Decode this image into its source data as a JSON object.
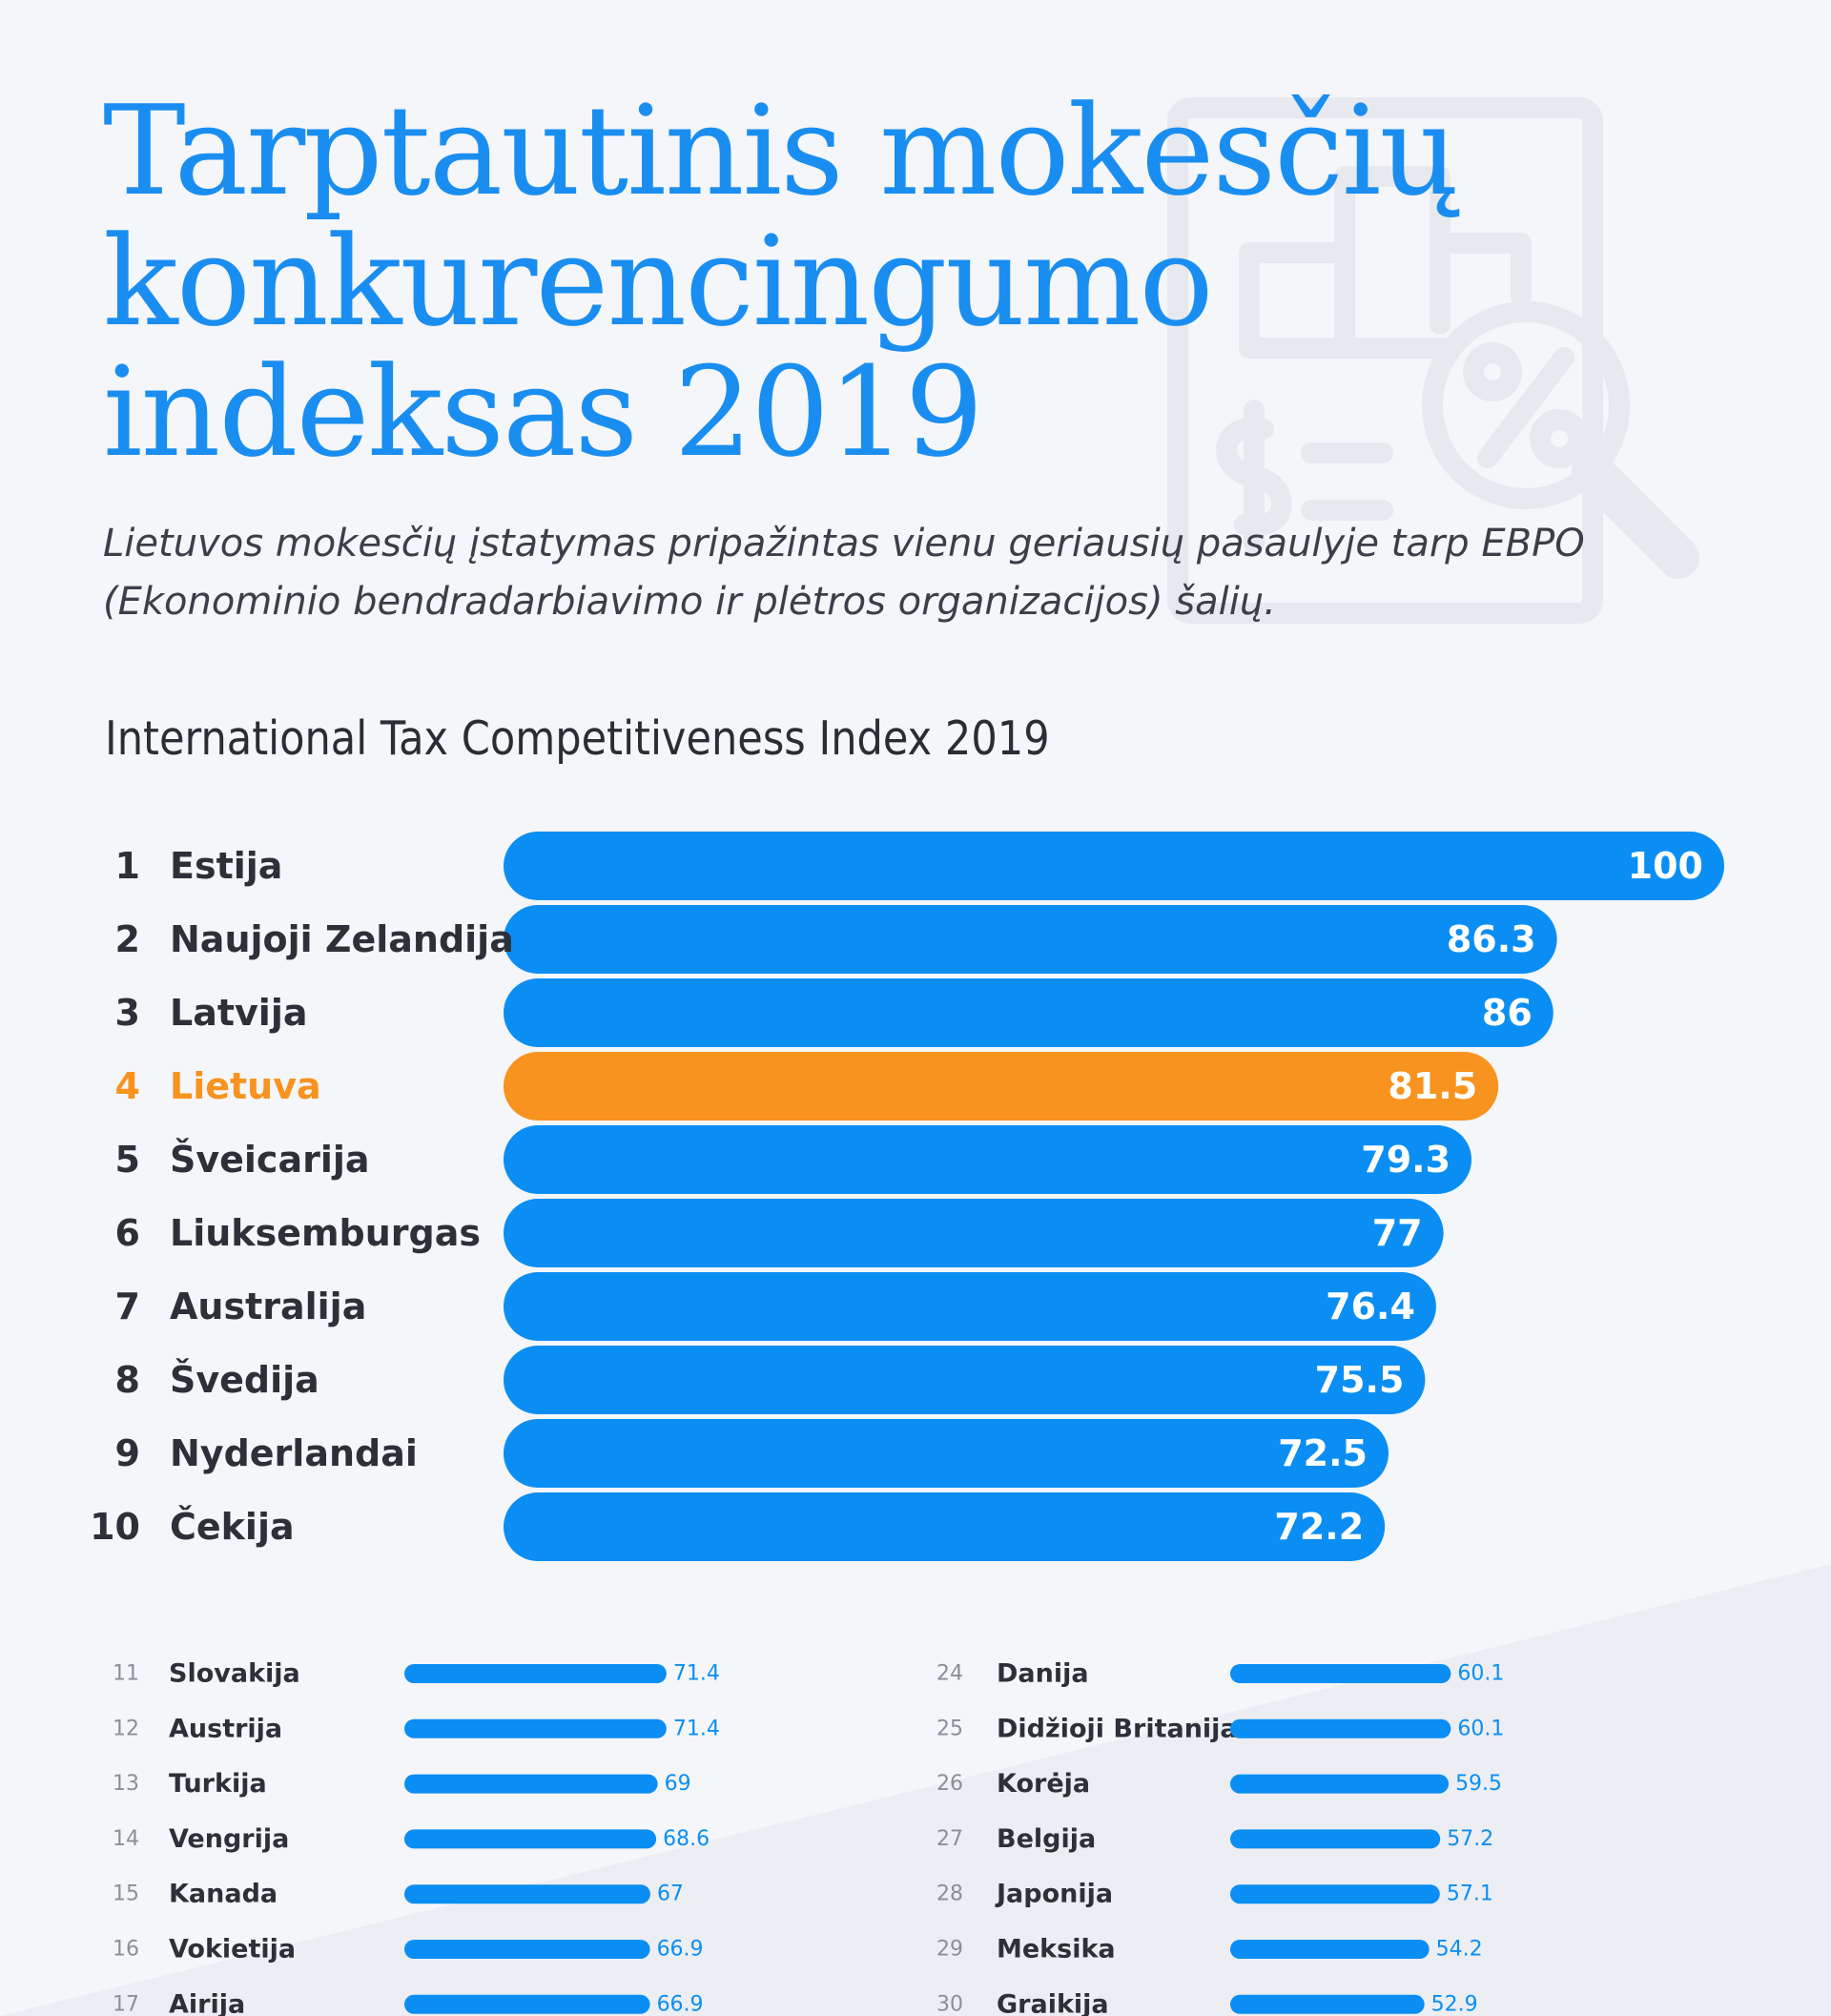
{
  "header": {
    "title_lines": [
      "Tarptautinis mokesčių",
      "konkurencingumo",
      "indeksas 2019"
    ],
    "subtitle_lines": [
      "Lietuvos mokesčių įstatymas pripažintas vienu geriausių pasaulyje tarp EBPO",
      "(Ekonominio bendradarbiavimo ir plėtros organizacijos) šalių."
    ]
  },
  "colors": {
    "title": "#1a8ef0",
    "bar": "#0b8ef3",
    "highlight": "#f7931e",
    "text": "#2d3038",
    "rank_small": "#8a8f99",
    "deco": "#e7e9ee"
  },
  "icons": [
    "report-chart-percent-icon"
  ],
  "chart_data": {
    "type": "bar",
    "orientation": "horizontal",
    "title": "International Tax Competitiveness Index 2019",
    "xlim": [
      0,
      100
    ],
    "highlight": "Lietuva",
    "top": [
      {
        "rank": "1",
        "country": "Estija",
        "value": 100,
        "label": "100"
      },
      {
        "rank": "2",
        "country": "Naujoji Zelandija",
        "value": 86.3,
        "label": "86.3"
      },
      {
        "rank": "3",
        "country": "Latvija",
        "value": 86,
        "label": "86"
      },
      {
        "rank": "4",
        "country": "Lietuva",
        "value": 81.5,
        "label": "81.5"
      },
      {
        "rank": "5",
        "country": "Šveicarija",
        "value": 79.3,
        "label": "79.3"
      },
      {
        "rank": "6",
        "country": "Liuksemburgas",
        "value": 77,
        "label": "77"
      },
      {
        "rank": "7",
        "country": "Australija",
        "value": 76.4,
        "label": "76.4"
      },
      {
        "rank": "8",
        "country": "Švedija",
        "value": 75.5,
        "label": "75.5"
      },
      {
        "rank": "9",
        "country": "Nyderlandai",
        "value": 72.5,
        "label": "72.5"
      },
      {
        "rank": "10",
        "country": "Čekija",
        "value": 72.2,
        "label": "72.2"
      }
    ],
    "rest_left": [
      {
        "rank": "11",
        "country": "Slovakija",
        "value": 71.4,
        "label": "71.4"
      },
      {
        "rank": "12",
        "country": "Austrija",
        "value": 71.4,
        "label": "71.4"
      },
      {
        "rank": "13",
        "country": "Turkija",
        "value": 69,
        "label": "69"
      },
      {
        "rank": "14",
        "country": "Vengrija",
        "value": 68.6,
        "label": "68.6"
      },
      {
        "rank": "15",
        "country": "Kanada",
        "value": 67,
        "label": "67"
      },
      {
        "rank": "16",
        "country": "Vokietija",
        "value": 66.9,
        "label": "66.9"
      },
      {
        "rank": "17",
        "country": "Airija",
        "value": 66.9,
        "label": "66.9"
      }
    ],
    "rest_right": [
      {
        "rank": "24",
        "country": "Danija",
        "value": 60.1,
        "label": "60.1"
      },
      {
        "rank": "25",
        "country": "Didžioji Britanija",
        "value": 60.1,
        "label": "60.1"
      },
      {
        "rank": "26",
        "country": "Korėja",
        "value": 59.5,
        "label": "59.5"
      },
      {
        "rank": "27",
        "country": "Belgija",
        "value": 57.2,
        "label": "57.2"
      },
      {
        "rank": "28",
        "country": "Japonija",
        "value": 57.1,
        "label": "57.1"
      },
      {
        "rank": "29",
        "country": "Meksika",
        "value": 54.2,
        "label": "54.2"
      },
      {
        "rank": "30",
        "country": "Graikija",
        "value": 52.9,
        "label": "52.9"
      }
    ]
  }
}
